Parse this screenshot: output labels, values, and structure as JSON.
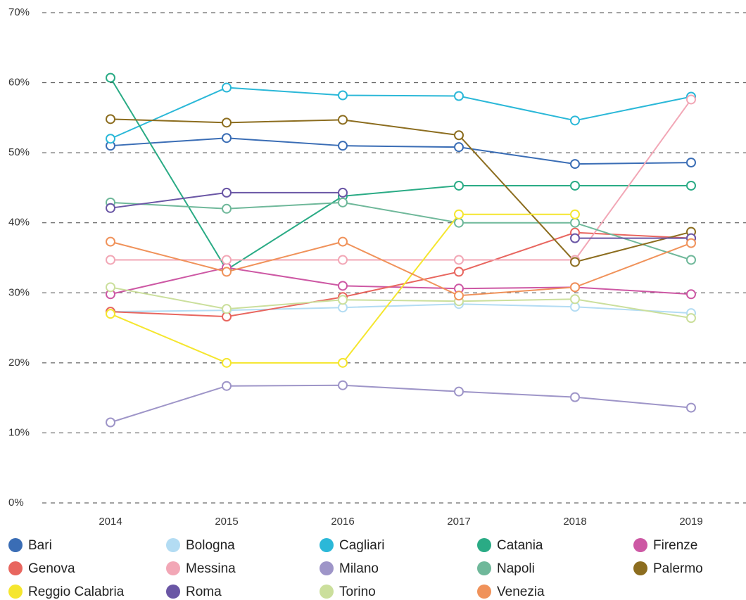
{
  "chart_data": {
    "type": "line",
    "categories": [
      "2014",
      "2015",
      "2016",
      "2017",
      "2018",
      "2019"
    ],
    "ylim": [
      0,
      70
    ],
    "yticks": [
      {
        "value": 0,
        "label": "0%"
      },
      {
        "value": 10,
        "label": "10%"
      },
      {
        "value": 20,
        "label": "20%"
      },
      {
        "value": 30,
        "label": "30%"
      },
      {
        "value": 40,
        "label": "40%"
      },
      {
        "value": 50,
        "label": "50%"
      },
      {
        "value": 60,
        "label": "60%"
      },
      {
        "value": 70,
        "label": "70%"
      }
    ],
    "grid": true,
    "legend": "bottom",
    "series": [
      {
        "name": "Bari",
        "color": "#3a6db5",
        "values": [
          51.0,
          52.1,
          51.0,
          50.8,
          48.4,
          48.6
        ]
      },
      {
        "name": "Bologna",
        "color": "#b3dcf3",
        "values": [
          27.3,
          27.5,
          27.9,
          28.4,
          28.0,
          27.1
        ]
      },
      {
        "name": "Cagliari",
        "color": "#2bb8d8",
        "values": [
          52.0,
          59.3,
          58.2,
          58.1,
          54.6,
          58.0
        ]
      },
      {
        "name": "Catania",
        "color": "#2aab85",
        "values": [
          60.7,
          33.3,
          43.8,
          45.3,
          45.3,
          45.3
        ]
      },
      {
        "name": "Firenze",
        "color": "#cd58a4",
        "values": [
          29.8,
          33.6,
          31.0,
          30.6,
          30.8,
          29.8
        ]
      },
      {
        "name": "Genova",
        "color": "#e8665f",
        "values": [
          27.3,
          26.6,
          29.4,
          33.0,
          38.6,
          37.8
        ]
      },
      {
        "name": "Messina",
        "color": "#f2a7b6",
        "values": [
          34.7,
          34.7,
          34.7,
          34.7,
          34.7,
          57.6
        ]
      },
      {
        "name": "Milano",
        "color": "#9e95c8",
        "values": [
          11.5,
          16.7,
          16.8,
          15.9,
          15.1,
          13.6
        ]
      },
      {
        "name": "Napoli",
        "color": "#6fb89a",
        "values": [
          42.9,
          42.0,
          42.9,
          40.0,
          40.0,
          34.7
        ]
      },
      {
        "name": "Palermo",
        "color": "#8c6d1f",
        "values": [
          54.8,
          54.3,
          54.7,
          52.5,
          34.4,
          38.7
        ]
      },
      {
        "name": "Reggio Calabria",
        "color": "#f5e62e",
        "values": [
          27.0,
          20.0,
          20.0,
          41.2,
          41.2,
          null
        ]
      },
      {
        "name": "Roma",
        "color": "#6a56a5",
        "values": [
          42.1,
          44.3,
          44.3,
          null,
          37.8,
          37.8
        ]
      },
      {
        "name": "Torino",
        "color": "#cbdf9c",
        "values": [
          30.8,
          27.7,
          29.0,
          28.8,
          29.1,
          26.4
        ]
      },
      {
        "name": "Venezia",
        "color": "#f0925a",
        "values": [
          37.3,
          33.0,
          37.3,
          29.6,
          30.8,
          37.1
        ]
      }
    ]
  }
}
